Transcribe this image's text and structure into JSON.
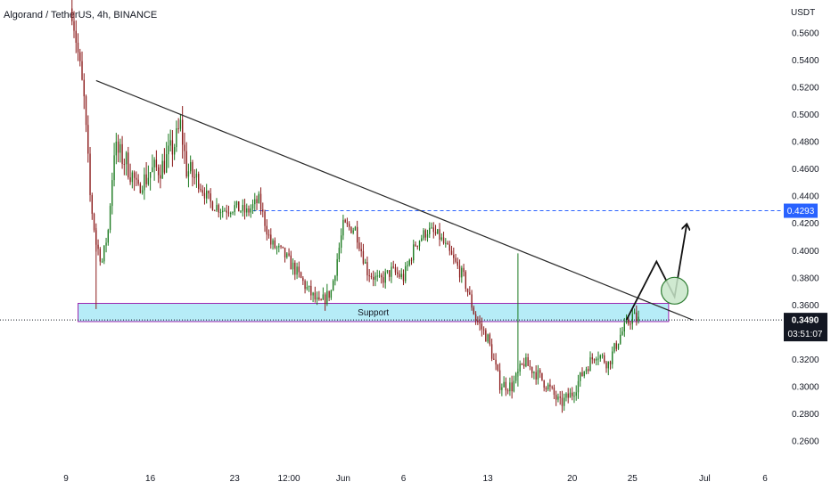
{
  "header": {
    "title": "Algorand / TetherUS, 4h, BINANCE",
    "unit": "USDT"
  },
  "price_badge": {
    "price": "0.3490",
    "countdown": "03:51:07",
    "color": "#131722"
  },
  "target_badge": {
    "price": "0.4293",
    "color": "#2962ff"
  },
  "colors": {
    "up": "#26a69a",
    "down": "#8b1a1a",
    "up_candle": "#1b7a1f",
    "zone_fill": "#b6ecf7",
    "zone_border": "#9c27b0",
    "trendline": "#2a2a2a",
    "target_line": "#2962ff",
    "circle_fill": "#c8e6c9",
    "circle_stroke": "#2e7d32"
  },
  "chart_data": {
    "type": "candlestick",
    "title": "Algorand / TetherUS, 4h, BINANCE",
    "ylabel": "USDT",
    "ylim": [
      0.255,
      0.59
    ],
    "y_ticks": [
      "0.5600",
      "0.5400",
      "0.5200",
      "0.5000",
      "0.4800",
      "0.4600",
      "0.4400",
      "0.4200",
      "0.4000",
      "0.3800",
      "0.3600",
      "0.3200",
      "0.3000",
      "0.2800",
      "0.2600"
    ],
    "x_ticks": [
      "9",
      "16",
      "23",
      "12:00",
      "Jun",
      "6",
      "13",
      "20",
      "25",
      "Jul",
      "6"
    ],
    "x_start": "May 9",
    "x_end": "Jul 6",
    "close_path": [
      [
        "May 9 12:00",
        0.578
      ],
      [
        "May 10",
        0.545
      ],
      [
        "May 10 12:00",
        0.51
      ],
      [
        "May 11",
        0.44
      ],
      [
        "May 11 12:00",
        0.405
      ],
      [
        "May 12",
        0.392
      ],
      [
        "May 12 12:00",
        0.415
      ],
      [
        "May 13",
        0.475
      ],
      [
        "May 14",
        0.465
      ],
      [
        "May 15",
        0.445
      ],
      [
        "May 16",
        0.458
      ],
      [
        "May 17",
        0.462
      ],
      [
        "May 18",
        0.478
      ],
      [
        "May 18 12:00",
        0.492
      ],
      [
        "May 19",
        0.46
      ],
      [
        "May 20",
        0.45
      ],
      [
        "May 21",
        0.435
      ],
      [
        "May 22",
        0.43
      ],
      [
        "May 23",
        0.432
      ],
      [
        "May 24",
        0.428
      ],
      [
        "May 25",
        0.437
      ],
      [
        "May 26",
        0.405
      ],
      [
        "May 27",
        0.398
      ],
      [
        "May 28",
        0.386
      ],
      [
        "May 29",
        0.372
      ],
      [
        "May 30",
        0.36
      ],
      [
        "May 31",
        0.37
      ],
      [
        "Jun 1",
        0.418
      ],
      [
        "Jun 2",
        0.416
      ],
      [
        "Jun 3",
        0.385
      ],
      [
        "Jun 4",
        0.377
      ],
      [
        "Jun 5",
        0.385
      ],
      [
        "Jun 6",
        0.38
      ],
      [
        "Jun 7",
        0.405
      ],
      [
        "Jun 8",
        0.415
      ],
      [
        "Jun 9",
        0.41
      ],
      [
        "Jun 10",
        0.395
      ],
      [
        "Jun 11",
        0.38
      ],
      [
        "Jun 12",
        0.35
      ],
      [
        "Jun 13",
        0.335
      ],
      [
        "Jun 14",
        0.302
      ],
      [
        "Jun 15",
        0.3
      ],
      [
        "Jun 16",
        0.318
      ],
      [
        "Jun 17",
        0.31
      ],
      [
        "Jun 18",
        0.3
      ],
      [
        "Jun 19",
        0.287
      ],
      [
        "Jun 20",
        0.295
      ],
      [
        "Jun 21",
        0.312
      ],
      [
        "Jun 22",
        0.325
      ],
      [
        "Jun 23",
        0.317
      ],
      [
        "Jun 24",
        0.338
      ],
      [
        "Jun 25",
        0.352
      ],
      [
        "Jun 25 12:00",
        0.349
      ]
    ],
    "horizontal_lines": [
      {
        "name": "target",
        "value": 0.4293,
        "style": "dashed"
      },
      {
        "name": "current price",
        "value": 0.349,
        "style": "dotted"
      }
    ],
    "zones": [
      {
        "label": "Support",
        "from": 0.3478,
        "to": 0.3612,
        "start": "May 10",
        "end": "Jun 28"
      }
    ],
    "trendline": {
      "from": [
        "May 11 12:00",
        0.525
      ],
      "to": [
        "Jun 30",
        0.349
      ]
    },
    "projection": [
      [
        "Jun 24 12:00",
        0.349
      ],
      [
        "Jun 27",
        0.392
      ],
      [
        "Jun 28 12:00",
        0.366
      ],
      [
        "Jun 29 12:00",
        0.419
      ]
    ],
    "marker_circle": {
      "at": [
        "Jun 28 12:00",
        0.3705
      ]
    }
  }
}
